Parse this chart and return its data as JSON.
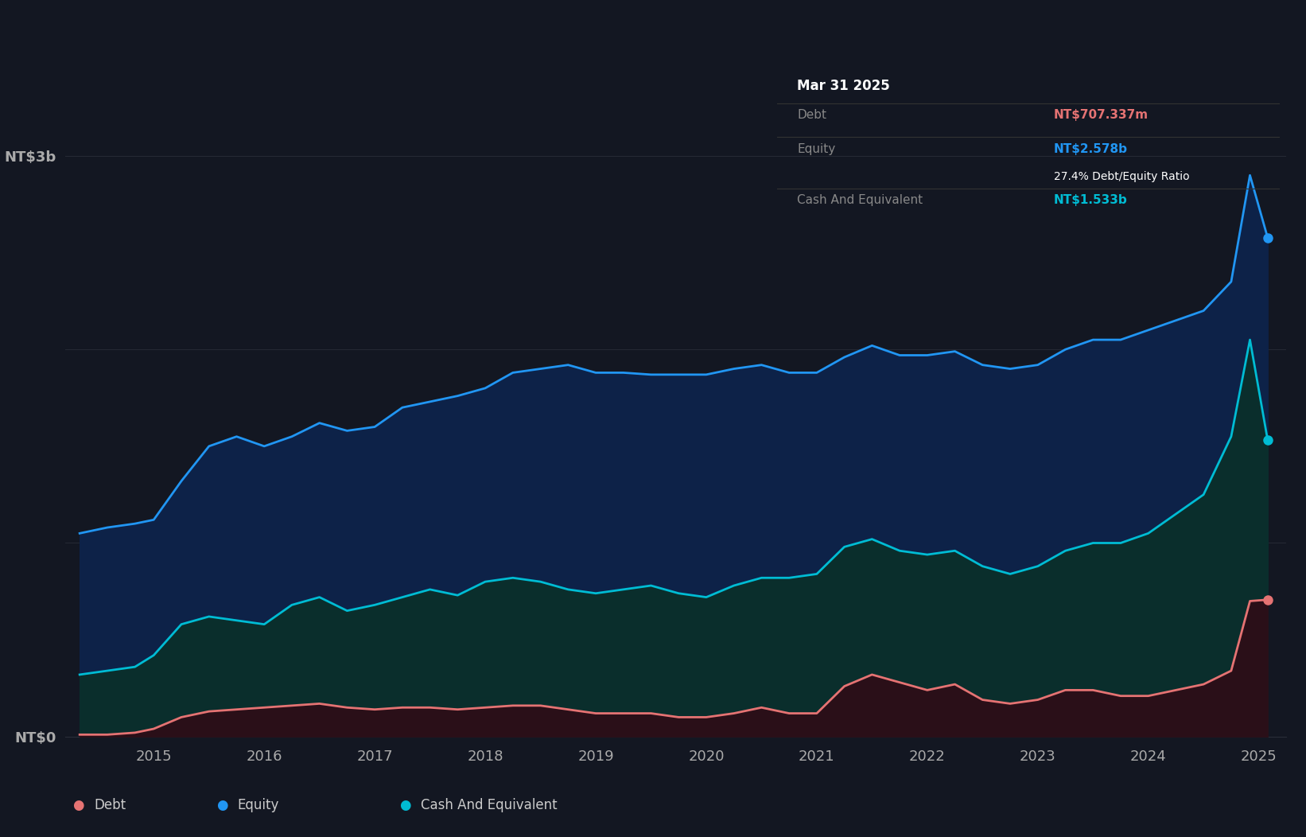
{
  "background_color": "#131722",
  "plot_bg_color": "#131722",
  "grid_color": "#2a2e39",
  "equity_color": "#2196f3",
  "cash_color": "#00bcd4",
  "debt_color": "#e57373",
  "tooltip_bg": "#000000",
  "tooltip_title": "Mar 31 2025",
  "tooltip_debt_label": "Debt",
  "tooltip_debt_value": "NT$707.337m",
  "tooltip_equity_label": "Equity",
  "tooltip_equity_value": "NT$2.578b",
  "tooltip_ratio": "27.4% Debt/Equity Ratio",
  "tooltip_cash_label": "Cash And Equivalent",
  "tooltip_cash_value": "NT$1.533b",
  "legend_items": [
    "Debt",
    "Equity",
    "Cash And Equivalent"
  ],
  "legend_colors": [
    "#e57373",
    "#2196f3",
    "#00bcd4"
  ],
  "equity_data": {
    "x": [
      2014.33,
      2014.58,
      2014.83,
      2015.0,
      2015.25,
      2015.5,
      2015.75,
      2016.0,
      2016.25,
      2016.5,
      2016.75,
      2017.0,
      2017.25,
      2017.5,
      2017.75,
      2018.0,
      2018.25,
      2018.5,
      2018.75,
      2019.0,
      2019.25,
      2019.5,
      2019.75,
      2020.0,
      2020.25,
      2020.5,
      2020.75,
      2021.0,
      2021.25,
      2021.5,
      2021.75,
      2022.0,
      2022.25,
      2022.5,
      2022.75,
      2023.0,
      2023.25,
      2023.5,
      2023.75,
      2024.0,
      2024.25,
      2024.5,
      2024.75,
      2024.92,
      2025.08
    ],
    "y": [
      1.05,
      1.08,
      1.1,
      1.12,
      1.32,
      1.5,
      1.55,
      1.5,
      1.55,
      1.62,
      1.58,
      1.6,
      1.7,
      1.73,
      1.76,
      1.8,
      1.88,
      1.9,
      1.92,
      1.88,
      1.88,
      1.87,
      1.87,
      1.87,
      1.9,
      1.92,
      1.88,
      1.88,
      1.96,
      2.02,
      1.97,
      1.97,
      1.99,
      1.92,
      1.9,
      1.92,
      2.0,
      2.05,
      2.05,
      2.1,
      2.15,
      2.2,
      2.35,
      2.9,
      2.578
    ]
  },
  "cash_data": {
    "x": [
      2014.33,
      2014.58,
      2014.83,
      2015.0,
      2015.25,
      2015.5,
      2015.75,
      2016.0,
      2016.25,
      2016.5,
      2016.75,
      2017.0,
      2017.25,
      2017.5,
      2017.75,
      2018.0,
      2018.25,
      2018.5,
      2018.75,
      2019.0,
      2019.25,
      2019.5,
      2019.75,
      2020.0,
      2020.25,
      2020.5,
      2020.75,
      2021.0,
      2021.25,
      2021.5,
      2021.75,
      2022.0,
      2022.25,
      2022.5,
      2022.75,
      2023.0,
      2023.25,
      2023.5,
      2023.75,
      2024.0,
      2024.25,
      2024.5,
      2024.75,
      2024.92,
      2025.08
    ],
    "y": [
      0.32,
      0.34,
      0.36,
      0.42,
      0.58,
      0.62,
      0.6,
      0.58,
      0.68,
      0.72,
      0.65,
      0.68,
      0.72,
      0.76,
      0.73,
      0.8,
      0.82,
      0.8,
      0.76,
      0.74,
      0.76,
      0.78,
      0.74,
      0.72,
      0.78,
      0.82,
      0.82,
      0.84,
      0.98,
      1.02,
      0.96,
      0.94,
      0.96,
      0.88,
      0.84,
      0.88,
      0.96,
      1.0,
      1.0,
      1.05,
      1.15,
      1.25,
      1.55,
      2.05,
      1.533
    ]
  },
  "debt_data": {
    "x": [
      2014.33,
      2014.58,
      2014.83,
      2015.0,
      2015.25,
      2015.5,
      2015.75,
      2016.0,
      2016.25,
      2016.5,
      2016.75,
      2017.0,
      2017.25,
      2017.5,
      2017.75,
      2018.0,
      2018.25,
      2018.5,
      2018.75,
      2019.0,
      2019.25,
      2019.5,
      2019.75,
      2020.0,
      2020.25,
      2020.5,
      2020.75,
      2021.0,
      2021.25,
      2021.5,
      2021.75,
      2022.0,
      2022.25,
      2022.5,
      2022.75,
      2023.0,
      2023.25,
      2023.5,
      2023.75,
      2024.0,
      2024.25,
      2024.5,
      2024.75,
      2024.92,
      2025.08
    ],
    "y": [
      0.01,
      0.01,
      0.02,
      0.04,
      0.1,
      0.13,
      0.14,
      0.15,
      0.16,
      0.17,
      0.15,
      0.14,
      0.15,
      0.15,
      0.14,
      0.15,
      0.16,
      0.16,
      0.14,
      0.12,
      0.12,
      0.12,
      0.1,
      0.1,
      0.12,
      0.15,
      0.12,
      0.12,
      0.26,
      0.32,
      0.28,
      0.24,
      0.27,
      0.19,
      0.17,
      0.19,
      0.24,
      0.24,
      0.21,
      0.21,
      0.24,
      0.27,
      0.34,
      0.7,
      0.707
    ]
  },
  "ylim": [
    0,
    3.2
  ],
  "xlim": [
    2014.2,
    2025.25
  ],
  "ytick_vals": [
    0,
    1.0,
    2.0,
    3.0
  ],
  "ytick_labels": [
    "NT$0",
    "",
    "",
    "NT$3b"
  ],
  "xtick_vals": [
    2015,
    2016,
    2017,
    2018,
    2019,
    2020,
    2021,
    2022,
    2023,
    2024,
    2025
  ]
}
